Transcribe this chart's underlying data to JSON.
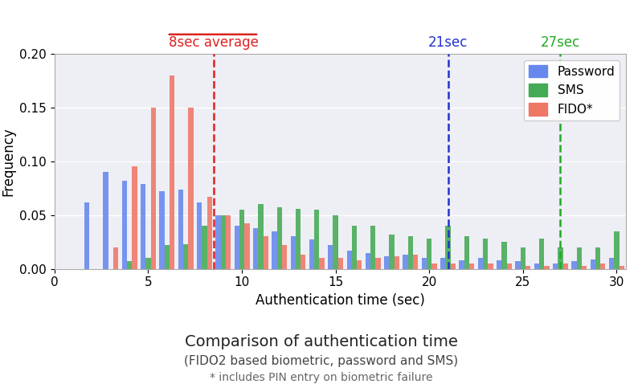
{
  "title": "Comparison of authentication time",
  "subtitle1": "(FIDO2 based biometric, password and SMS)",
  "subtitle2": "* includes PIN entry on biometric failure",
  "xlabel": "Authentication time (sec)",
  "ylabel": "Frequency",
  "xlim": [
    1.5,
    30.5
  ],
  "ylim": [
    0,
    0.2
  ],
  "yticks": [
    0.0,
    0.05,
    0.1,
    0.15,
    0.2
  ],
  "xticks": [
    0,
    5,
    10,
    15,
    20,
    25,
    30
  ],
  "legend_labels": [
    "Password",
    "SMS",
    "FIDO*"
  ],
  "colors": {
    "password": "#6688EE",
    "sms": "#44AA55",
    "fido": "#EE7766"
  },
  "vline_fido": {
    "x": 8.5,
    "color": "#DD2222",
    "label": "8sec average"
  },
  "vline_password": {
    "x": 21,
    "color": "#2233CC",
    "label": "21sec"
  },
  "vline_sms": {
    "x": 27,
    "color": "#22AA22",
    "label": "27sec"
  },
  "bar_width": 0.27,
  "x_positions": [
    2,
    3,
    4,
    5,
    6,
    7,
    8,
    9,
    10,
    11,
    12,
    13,
    14,
    15,
    16,
    17,
    18,
    19,
    20,
    21,
    22,
    23,
    24,
    25,
    26,
    27,
    28,
    29,
    30
  ],
  "password_freq": [
    0.062,
    0.09,
    0.082,
    0.079,
    0.072,
    0.074,
    0.062,
    0.05,
    0.04,
    0.038,
    0.035,
    0.03,
    0.027,
    0.022,
    0.017,
    0.015,
    0.012,
    0.013,
    0.01,
    0.01,
    0.008,
    0.01,
    0.008,
    0.007,
    0.005,
    0.005,
    0.007,
    0.009,
    0.01
  ],
  "sms_freq": [
    0.0,
    0.0,
    0.007,
    0.01,
    0.022,
    0.023,
    0.04,
    0.05,
    0.055,
    0.06,
    0.057,
    0.056,
    0.055,
    0.05,
    0.04,
    0.04,
    0.032,
    0.03,
    0.028,
    0.04,
    0.03,
    0.028,
    0.025,
    0.02,
    0.028,
    0.02,
    0.02,
    0.02,
    0.035
  ],
  "fido_freq": [
    0.0,
    0.02,
    0.095,
    0.15,
    0.18,
    0.15,
    0.067,
    0.05,
    0.042,
    0.03,
    0.022,
    0.013,
    0.01,
    0.01,
    0.008,
    0.01,
    0.012,
    0.013,
    0.005,
    0.005,
    0.005,
    0.005,
    0.005,
    0.003,
    0.003,
    0.005,
    0.003,
    0.005,
    0.003
  ],
  "background_color": "#EEEEF5"
}
